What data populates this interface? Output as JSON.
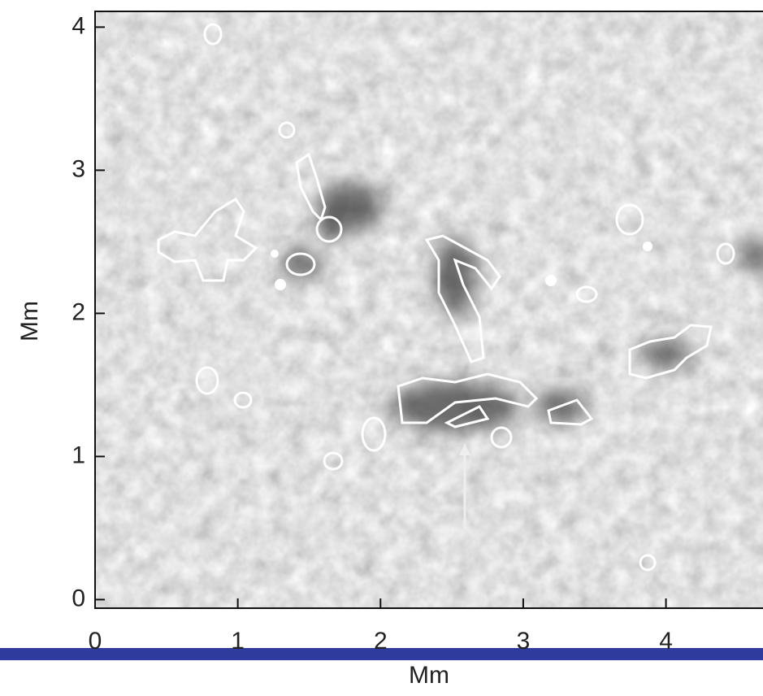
{
  "chart_data": {
    "type": "image",
    "xlabel": "Mm",
    "ylabel": "Mm",
    "xlim": [
      0,
      4.68
    ],
    "ylim": [
      -0.06,
      4.11
    ],
    "xticks": [
      0,
      1,
      2,
      3,
      4
    ],
    "yticks": [
      0,
      1,
      2,
      3,
      4
    ]
  }
}
